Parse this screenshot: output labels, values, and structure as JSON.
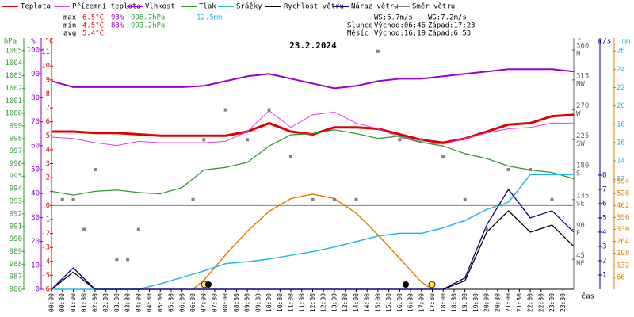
{
  "chart_data": {
    "type": "line",
    "title": "23.2.2024",
    "x_label": "čas",
    "x": [
      0,
      1,
      2,
      3,
      4,
      5,
      6,
      7,
      8,
      9,
      10,
      11,
      12,
      13,
      14,
      15,
      16,
      17,
      18,
      19,
      20,
      21,
      22,
      23,
      24
    ],
    "xlim": [
      0,
      24
    ],
    "xticks": [
      {
        "value": 0,
        "label": "00:00"
      },
      {
        "value": 0.5,
        "label": "00:30"
      },
      {
        "value": 1,
        "label": "01:00"
      },
      {
        "value": 1.5,
        "label": "01:30"
      },
      {
        "value": 2,
        "label": "02:00"
      },
      {
        "value": 2.5,
        "label": "02:30"
      },
      {
        "value": 3,
        "label": "03:00"
      },
      {
        "value": 3.5,
        "label": "03:30"
      },
      {
        "value": 4,
        "label": "04:00"
      },
      {
        "value": 4.5,
        "label": "04:30"
      },
      {
        "value": 5,
        "label": "05:00"
      },
      {
        "value": 5.5,
        "label": "05:30"
      },
      {
        "value": 6,
        "label": "06:00"
      },
      {
        "value": 6.5,
        "label": "06:30"
      },
      {
        "value": 7,
        "label": "07:00"
      },
      {
        "value": 7.5,
        "label": "07:30"
      },
      {
        "value": 8,
        "label": "08:00"
      },
      {
        "value": 8.5,
        "label": "08:30"
      },
      {
        "value": 9,
        "label": "09:00"
      },
      {
        "value": 9.5,
        "label": "09:30"
      },
      {
        "value": 10,
        "label": "10:00"
      },
      {
        "value": 10.5,
        "label": "10:30"
      },
      {
        "value": 11,
        "label": "11:00"
      },
      {
        "value": 11.5,
        "label": "11:30"
      },
      {
        "value": 12,
        "label": "12:00"
      },
      {
        "value": 12.5,
        "label": "12:30"
      },
      {
        "value": 13,
        "label": "13:00"
      },
      {
        "value": 13.5,
        "label": "13:30"
      },
      {
        "value": 14,
        "label": "14:00"
      },
      {
        "value": 14.5,
        "label": "14:30"
      },
      {
        "value": 15,
        "label": "15:00"
      },
      {
        "value": 15.5,
        "label": "15:30"
      },
      {
        "value": 16,
        "label": "16:00"
      },
      {
        "value": 16.5,
        "label": "16:30"
      },
      {
        "value": 17,
        "label": "17:00"
      },
      {
        "value": 17.5,
        "label": "17:30"
      },
      {
        "value": 18,
        "label": "18:00"
      },
      {
        "value": 18.5,
        "label": "18:30"
      },
      {
        "value": 19,
        "label": "19:00"
      },
      {
        "value": 19.5,
        "label": "19:30"
      },
      {
        "value": 20,
        "label": "20:00"
      },
      {
        "value": 20.5,
        "label": "20:30"
      },
      {
        "value": 21,
        "label": "21:00"
      },
      {
        "value": 21.5,
        "label": "21:30"
      },
      {
        "value": 22,
        "label": "22:00"
      },
      {
        "value": 22.5,
        "label": "22:30"
      },
      {
        "value": 23,
        "label": "23:00"
      },
      {
        "value": 23.5,
        "label": "23:30"
      }
    ],
    "axes": {
      "hpa": {
        "label": "hPa",
        "color": "#339933",
        "lim": [
          986,
          1006
        ],
        "ticks": [
          986,
          987,
          988,
          989,
          990,
          991,
          992,
          993,
          994,
          995,
          996,
          997,
          998,
          999,
          1000,
          1001,
          1002,
          1003,
          1004,
          1005
        ]
      },
      "pct": {
        "label": "%",
        "color": "#9900cc",
        "lim": [
          0,
          105
        ],
        "ticks": [
          0,
          10,
          20,
          30,
          40,
          50,
          60,
          70,
          80,
          90,
          100
        ]
      },
      "temp": {
        "label": "°C",
        "color": "#e00000",
        "lim": [
          -6,
          12
        ],
        "ticks": [
          -6,
          -5,
          -4,
          -3,
          -2,
          -1,
          0,
          1,
          2,
          3,
          4,
          5,
          6,
          7,
          8,
          9,
          10,
          11
        ]
      },
      "dir": {
        "label": "°",
        "color": "#606060",
        "lim": [
          0,
          378
        ],
        "ticks": [
          45,
          90,
          135,
          180,
          225,
          270,
          315,
          360
        ],
        "compass": [
          "NE",
          "E",
          "SE",
          "S",
          "SW",
          "W",
          "NW",
          "N"
        ]
      },
      "ms": {
        "label": "m/s",
        "color": "#000080",
        "lim": [
          0,
          17.6
        ],
        "ticks": [
          1,
          2,
          3,
          4,
          5,
          6,
          7,
          8
        ]
      },
      "mm": {
        "label": "mm",
        "color": "#22b8e0",
        "lim": [
          0,
          27.4
        ],
        "ticks": [
          12,
          14,
          16,
          18,
          20,
          22,
          24,
          26
        ]
      },
      "wm2": {
        "color": "#e08000",
        "lim": [
          0,
          1385
        ],
        "ticks": [
          66,
          132,
          198,
          264,
          330,
          396,
          462,
          528,
          594
        ]
      }
    },
    "series": [
      {
        "name": "Teplota",
        "color": "#e00000",
        "axis": "temp",
        "width": 3,
        "values": [
          5.3,
          5.3,
          5.2,
          5.2,
          5.1,
          5.0,
          5.0,
          5.0,
          5.0,
          5.3,
          5.9,
          5.3,
          5.1,
          5.6,
          5.6,
          5.5,
          5.1,
          4.7,
          4.5,
          4.8,
          5.3,
          5.8,
          5.9,
          6.4,
          6.5
        ]
      },
      {
        "name": "Přízemní teplota",
        "color": "#e040e0",
        "axis": "temp",
        "width": 1,
        "values": [
          4.9,
          4.8,
          4.5,
          4.3,
          4.6,
          4.5,
          4.5,
          4.5,
          4.6,
          5.3,
          6.8,
          5.6,
          6.5,
          6.7,
          5.9,
          5.5,
          4.9,
          4.5,
          4.4,
          4.8,
          5.2,
          5.5,
          5.6,
          5.9,
          5.9
        ]
      },
      {
        "name": "Vlhkost",
        "color": "#9900cc",
        "axis": "pct",
        "width": 2,
        "values": [
          87,
          84.5,
          84.5,
          84.5,
          84.5,
          84.5,
          84.5,
          85,
          87,
          89,
          90,
          88,
          86,
          84,
          85,
          87,
          88,
          88,
          89,
          90,
          91,
          92,
          92,
          92,
          91
        ]
      },
      {
        "name": "Tlak",
        "color": "#339933",
        "axis": "hpa",
        "width": 1.3,
        "values": [
          993.8,
          993.5,
          993.8,
          993.9,
          993.7,
          993.6,
          994.1,
          995.5,
          995.7,
          996.1,
          997.4,
          998.3,
          998.4,
          998.7,
          998.4,
          998.0,
          998.2,
          997.7,
          997.4,
          996.8,
          996.4,
          995.8,
          995.5,
          995.3,
          994.8
        ]
      },
      {
        "name": "Srážky",
        "color": "#22b8e0",
        "axis": "mm",
        "width": 1.5,
        "values": [
          0,
          0,
          0,
          0,
          0,
          0.6,
          1.3,
          2.0,
          2.8,
          3.0,
          3.3,
          3.7,
          4.1,
          4.6,
          5.2,
          5.8,
          6.1,
          6.1,
          6.7,
          7.5,
          8.7,
          9.5,
          12.5,
          12.5,
          12.5
        ]
      },
      {
        "name": "Rychlost větru",
        "color": "#000000",
        "axis": "ms",
        "width": 1.3,
        "values": [
          0,
          1.2,
          0,
          0,
          0,
          0,
          0,
          0,
          0,
          0,
          0,
          0,
          0,
          0,
          0,
          0,
          0,
          0,
          0,
          0.6,
          4.0,
          5.5,
          4.0,
          4.5,
          3.0
        ]
      },
      {
        "name": "Náraz větru",
        "color": "#000080",
        "axis": "ms",
        "width": 1.3,
        "values": [
          0,
          1.5,
          0,
          0,
          0,
          0,
          0,
          0,
          0,
          0,
          0,
          0,
          0,
          0,
          0,
          0,
          0,
          0,
          0,
          0.8,
          4.5,
          7.0,
          5.0,
          5.5,
          4.0
        ]
      },
      {
        "name": "Směr větru",
        "color": "#808080",
        "axis": "dir",
        "style": "points",
        "x": [
          0.5,
          1,
          1.5,
          2,
          3,
          3.5,
          4,
          6.5,
          7,
          8,
          9,
          10,
          11,
          12,
          13,
          14,
          15,
          16,
          17,
          18,
          19,
          20,
          21,
          22,
          23
        ],
        "values": [
          135,
          135,
          90,
          180,
          45,
          45,
          90,
          135,
          225,
          270,
          225,
          270,
          200,
          135,
          135,
          135,
          358,
          225,
          225,
          200,
          135,
          90,
          180,
          180,
          135
        ]
      }
    ],
    "radiation": {
      "color": "#e08000",
      "axis": "wm2",
      "x": [
        6.5,
        7,
        8,
        9,
        10,
        11,
        12,
        13,
        14,
        15,
        16,
        17,
        17.5
      ],
      "values": [
        0,
        50,
        190,
        320,
        430,
        500,
        525,
        500,
        420,
        300,
        170,
        40,
        0
      ]
    },
    "stats": [
      [
        "max",
        "6.5°C",
        "93%",
        "998.7hPa",
        "12.5mm"
      ],
      [
        "min",
        "4.5°C",
        "83%",
        "993.2hPa"
      ],
      [
        "avg",
        "5.4°C"
      ]
    ],
    "info": [
      [
        "WS:5.7m/s",
        "WG:7.2m/s"
      ],
      [
        "Slunce",
        "Východ:06:46",
        "Západ:17:23"
      ],
      [
        "Měsíc",
        "Východ:16:19",
        "Západ:6:53"
      ]
    ]
  }
}
